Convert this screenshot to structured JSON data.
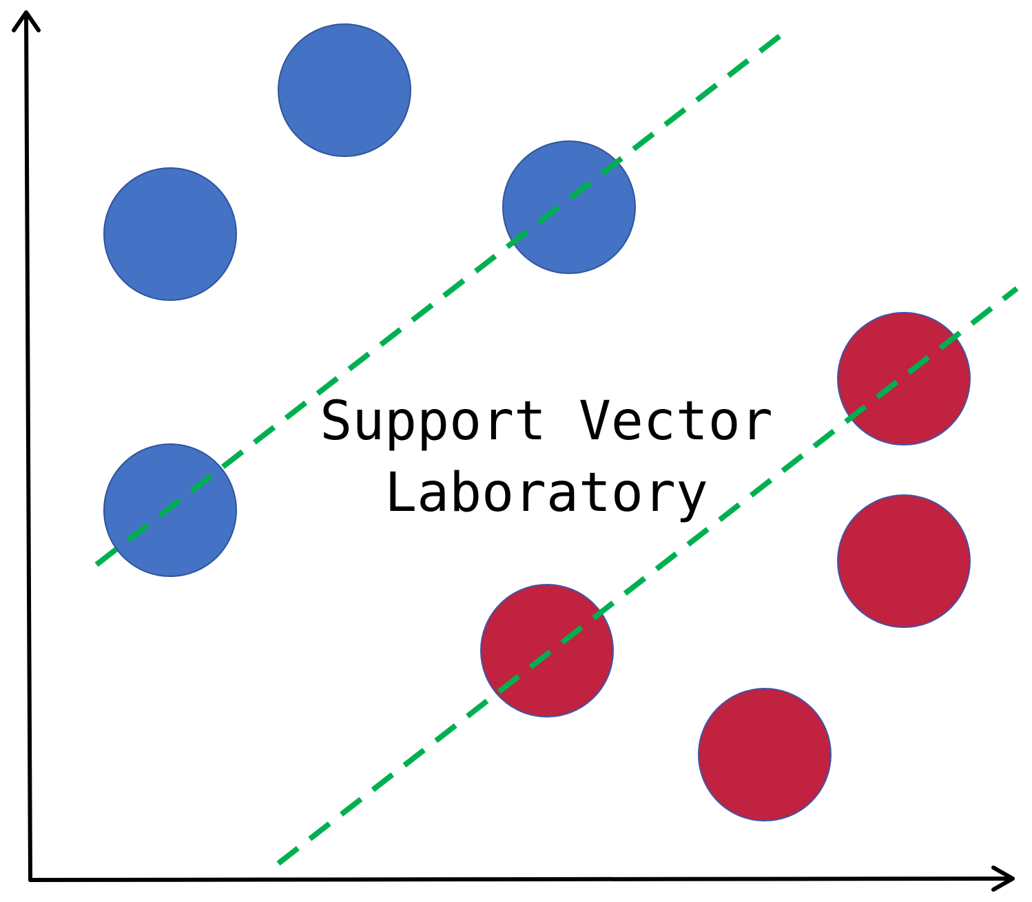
{
  "title": {
    "line1": "Support Vector",
    "line2": "Laboratory"
  },
  "colors": {
    "axis": "#000000",
    "class_a_fill": "#4472c4",
    "class_a_stroke": "#2f5597",
    "class_b_fill": "#c0223f",
    "class_b_stroke": "#3f55a8",
    "margin_line": "#00b050",
    "text": "#000000"
  },
  "points": {
    "class_a": [
      {
        "name": "blue-circle-1"
      },
      {
        "name": "blue-circle-2"
      },
      {
        "name": "blue-circle-3"
      },
      {
        "name": "blue-circle-4"
      }
    ],
    "class_b": [
      {
        "name": "red-circle-1"
      },
      {
        "name": "red-circle-2"
      },
      {
        "name": "red-circle-3"
      },
      {
        "name": "red-circle-4"
      }
    ]
  },
  "lines": {
    "style": "dashed"
  }
}
